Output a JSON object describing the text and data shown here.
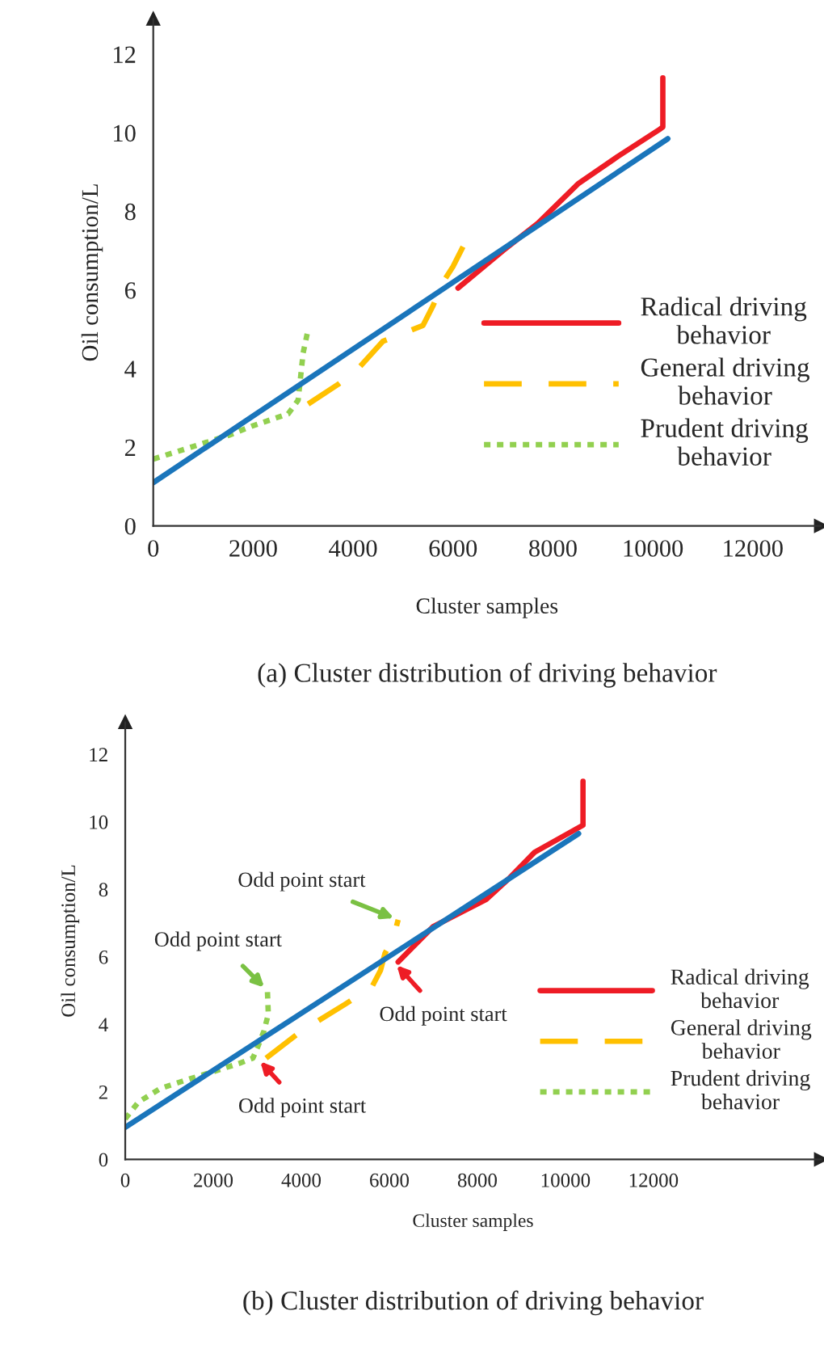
{
  "chart_data": [
    {
      "type": "line",
      "title": "(a) Cluster distribution of driving behavior",
      "xlabel": "Cluster samples",
      "ylabel": "Oil consumption/L",
      "xlim": [
        0,
        13360
      ],
      "ylim": [
        0,
        12.9
      ],
      "xticks": [
        0,
        2000,
        4000,
        6000,
        8000,
        10000,
        12000
      ],
      "yticks": [
        0,
        2,
        4,
        6,
        8,
        10,
        12
      ],
      "grid": false,
      "legend": "right",
      "marker": "none",
      "series": [
        {
          "name": "Radical driving behavior",
          "color": "#ee1c25",
          "line_style": "solid",
          "x": [
            6100,
            7000,
            7700,
            8500,
            9300,
            10150,
            10200,
            10200
          ],
          "values": [
            6.05,
            7.0,
            7.7,
            8.7,
            9.4,
            10.1,
            10.15,
            11.4
          ]
        },
        {
          "name": "General driving behavior",
          "color": "#ffc000",
          "line_style": "dashed",
          "x": [
            3100,
            3700,
            4100,
            4600,
            5000,
            5400,
            5600,
            5800,
            6000,
            6200
          ],
          "values": [
            3.1,
            3.6,
            4.0,
            4.7,
            4.9,
            5.1,
            5.6,
            6.2,
            6.6,
            7.1
          ]
        },
        {
          "name": "Prudent driving behavior",
          "color": "#92d050",
          "line_style": "dotted",
          "x": [
            0,
            1500,
            2000,
            2700,
            2900,
            2950,
            3000,
            3100
          ],
          "values": [
            1.7,
            2.3,
            2.55,
            2.85,
            3.2,
            3.8,
            4.4,
            5.0
          ]
        },
        {
          "color": "#1a75bb",
          "line_style": "solid",
          "x": [
            0,
            10300
          ],
          "values": [
            1.1,
            9.85
          ]
        }
      ]
    },
    {
      "type": "line",
      "title": "(b) Cluster distribution of driving behavior",
      "xlabel": "Cluster samples",
      "ylabel": "Oil consumption/L",
      "xlim": [
        0,
        15800
      ],
      "ylim": [
        0,
        12.95
      ],
      "xticks": [
        0,
        2000,
        4000,
        6000,
        8000,
        10000,
        12000
      ],
      "yticks": [
        0,
        2,
        4,
        6,
        8,
        10,
        12
      ],
      "grid": false,
      "legend": "right",
      "marker": "none",
      "series": [
        {
          "name": "Radical driving behavior",
          "color": "#ee1c25",
          "line_style": "solid",
          "x": [
            6200,
            7000,
            8200,
            8700,
            9300,
            10400,
            10400
          ],
          "values": [
            5.85,
            6.9,
            7.7,
            8.3,
            9.1,
            9.9,
            11.2
          ]
        },
        {
          "name": "General driving behavior",
          "color": "#ffc000",
          "line_style": "dashed",
          "x": [
            3200,
            4000,
            5000,
            5600,
            5800,
            5900,
            6100,
            6200
          ],
          "values": [
            3.0,
            3.8,
            4.6,
            5.1,
            5.6,
            6.1,
            6.6,
            7.1
          ]
        },
        {
          "name": "Prudent driving behavior",
          "color": "#92d050",
          "line_style": "dotted",
          "x": [
            0,
            300,
            800,
            1500,
            2000,
            2600,
            2900,
            3000,
            3150,
            3250,
            3230
          ],
          "values": [
            1.2,
            1.7,
            2.1,
            2.4,
            2.6,
            2.85,
            3.0,
            3.3,
            3.8,
            4.3,
            5.0
          ]
        },
        {
          "color": "#1a75bb",
          "line_style": "solid",
          "x": [
            0,
            10300
          ],
          "values": [
            0.95,
            9.65
          ]
        }
      ],
      "annotations": [
        {
          "text": "Odd point start",
          "x": 6200,
          "y": 7.1
        },
        {
          "text": "Odd point start",
          "x": 3230,
          "y": 5.0
        },
        {
          "text": "Odd point start",
          "x": 6100,
          "y": 5.85
        },
        {
          "text": "Odd point start",
          "x": 3000,
          "y": 3.0
        }
      ]
    }
  ]
}
